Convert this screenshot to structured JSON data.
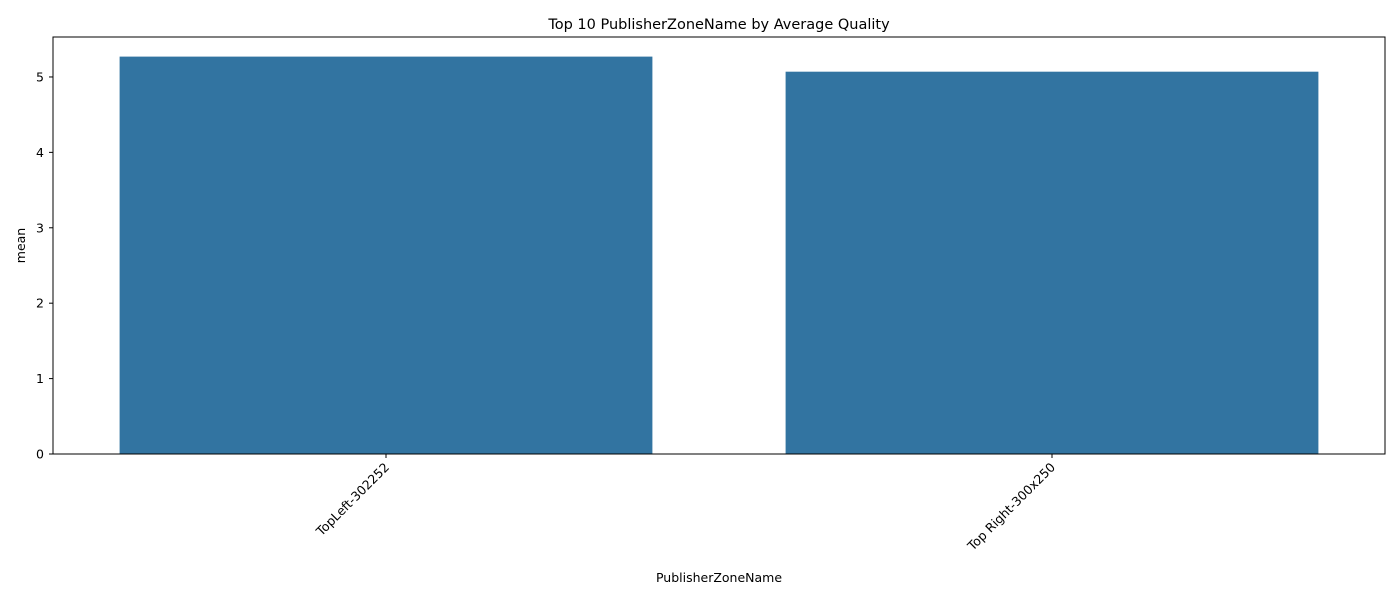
{
  "chart_data": {
    "type": "bar",
    "title": "Top 10 PublisherZoneName by Average Quality",
    "xlabel": "PublisherZoneName",
    "ylabel": "mean",
    "categories": [
      "TopLeft-302252",
      "Top Right-300x250"
    ],
    "values": [
      5.27,
      5.07
    ],
    "ylim": [
      0,
      5.53
    ],
    "yticks": [
      "0",
      "1",
      "2",
      "3",
      "4",
      "5"
    ],
    "bar_color": "#3274a1",
    "grid": false,
    "legend": "none"
  }
}
